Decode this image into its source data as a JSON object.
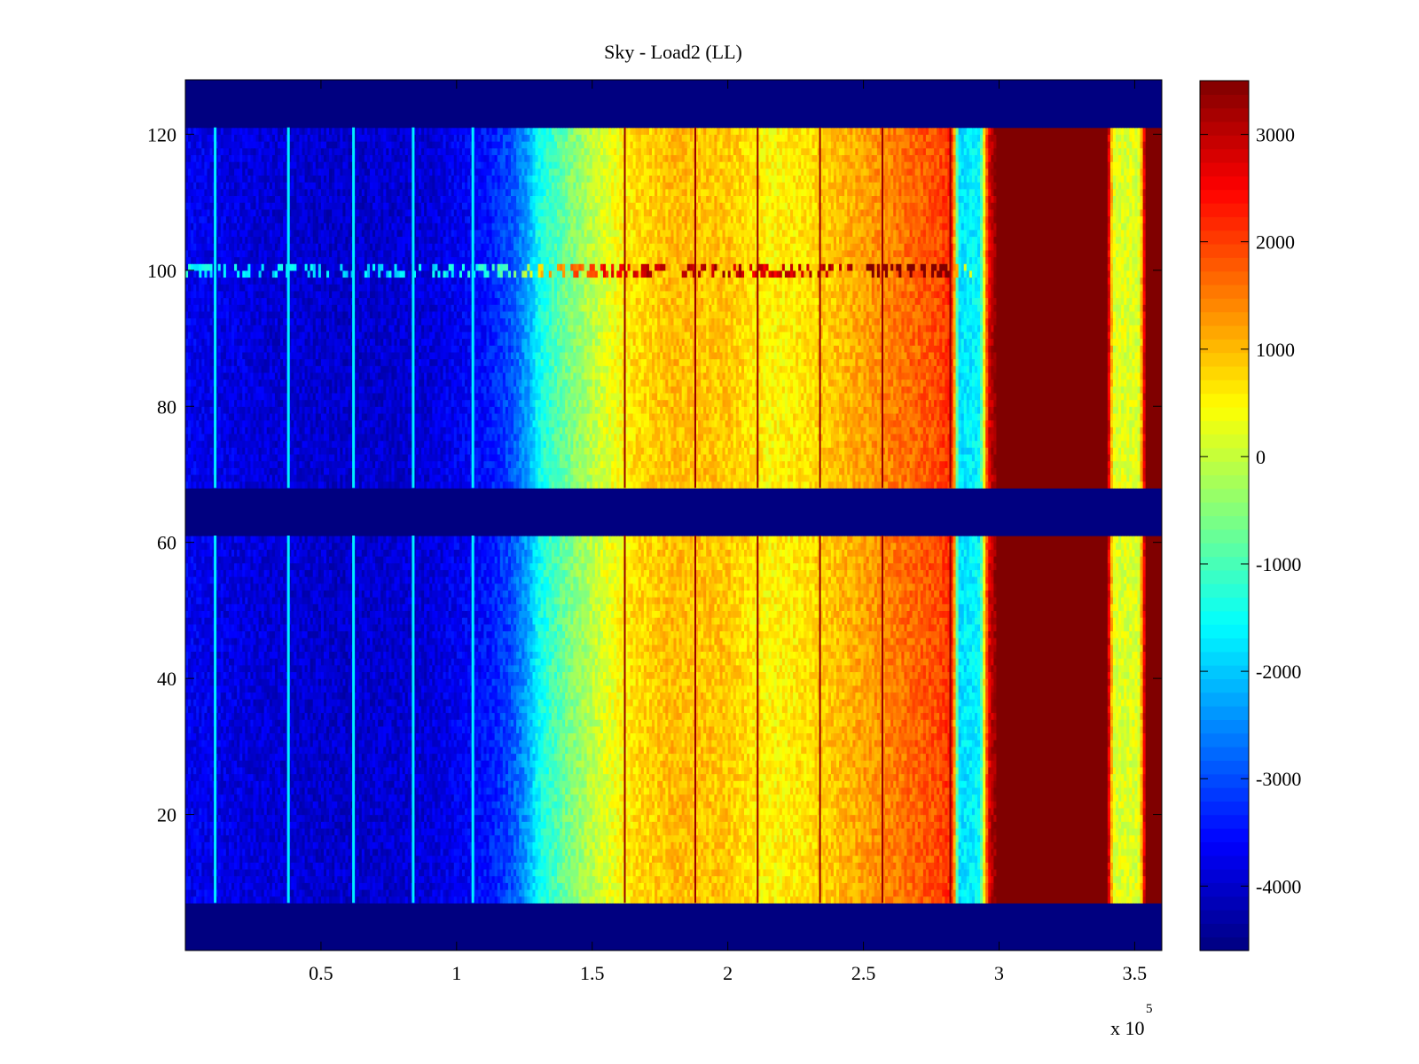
{
  "chart_data": {
    "type": "heatmap",
    "title": "Sky - Load2 (LL)",
    "xlabel": "",
    "ylabel": "",
    "x_exponent_label": "x 10",
    "x_exponent_power": "5",
    "xlim": [
      0,
      360000
    ],
    "ylim": [
      0,
      128
    ],
    "xticks": [
      {
        "value": 50000,
        "label": "0.5"
      },
      {
        "value": 100000,
        "label": "1"
      },
      {
        "value": 150000,
        "label": "1.5"
      },
      {
        "value": 200000,
        "label": "2"
      },
      {
        "value": 250000,
        "label": "2.5"
      },
      {
        "value": 300000,
        "label": "3"
      },
      {
        "value": 350000,
        "label": "3.5"
      }
    ],
    "yticks": [
      {
        "value": 20,
        "label": "20"
      },
      {
        "value": 40,
        "label": "40"
      },
      {
        "value": 60,
        "label": "60"
      },
      {
        "value": 80,
        "label": "80"
      },
      {
        "value": 100,
        "label": "100"
      },
      {
        "value": 120,
        "label": "120"
      }
    ],
    "colorbar": {
      "colormap": "jet",
      "range": [
        -4600,
        3500
      ],
      "ticks": [
        {
          "value": 3000,
          "label": "3000"
        },
        {
          "value": 2000,
          "label": "2000"
        },
        {
          "value": 1000,
          "label": "1000"
        },
        {
          "value": 0,
          "label": "0"
        },
        {
          "value": -1000,
          "label": "-1000"
        },
        {
          "value": -2000,
          "label": "-2000"
        },
        {
          "value": -3000,
          "label": "-3000"
        },
        {
          "value": -4000,
          "label": "-4000"
        }
      ]
    },
    "masked_channel_ranges": [
      [
        0,
        7
      ],
      [
        61,
        68
      ],
      [
        121,
        128
      ]
    ],
    "mask_value": -4600,
    "x_profile": [
      {
        "x": 0,
        "value": -3700
      },
      {
        "x": 30000,
        "value": -3900
      },
      {
        "x": 60000,
        "value": -4000
      },
      {
        "x": 90000,
        "value": -3900
      },
      {
        "x": 110000,
        "value": -3500
      },
      {
        "x": 120000,
        "value": -3000
      },
      {
        "x": 127000,
        "value": -2200
      },
      {
        "x": 130000,
        "value": -1500
      },
      {
        "x": 140000,
        "value": -700
      },
      {
        "x": 155000,
        "value": 200
      },
      {
        "x": 165000,
        "value": 700
      },
      {
        "x": 180000,
        "value": 1000
      },
      {
        "x": 200000,
        "value": 900
      },
      {
        "x": 215000,
        "value": 500
      },
      {
        "x": 230000,
        "value": 700
      },
      {
        "x": 250000,
        "value": 1200
      },
      {
        "x": 265000,
        "value": 1600
      },
      {
        "x": 278000,
        "value": 1900
      },
      {
        "x": 283000,
        "value": 2200
      },
      {
        "x": 285000,
        "value": -1800
      },
      {
        "x": 293000,
        "value": -1600
      },
      {
        "x": 296000,
        "value": 2600
      },
      {
        "x": 299000,
        "value": 3500
      },
      {
        "x": 340000,
        "value": 3500
      },
      {
        "x": 342000,
        "value": 200
      },
      {
        "x": 352000,
        "value": 200
      },
      {
        "x": 354000,
        "value": 3500
      },
      {
        "x": 360000,
        "value": 3500
      }
    ],
    "features": {
      "bright_streaks_x": [
        11000,
        38000,
        62000,
        84000,
        106000
      ],
      "dark_lines_x": [
        162000,
        188000,
        211000,
        234000,
        257000,
        282000
      ],
      "rfi_row_channel": 100
    }
  }
}
